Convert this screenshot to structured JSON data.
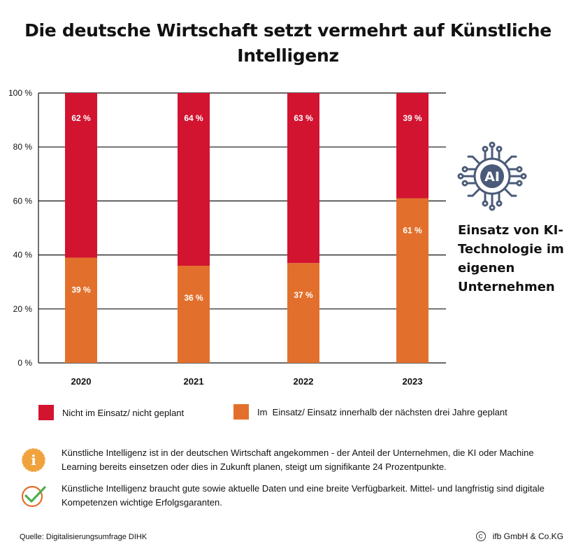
{
  "title": "Die deutsche Wirtschaft setzt vermehrt auf Künstliche Intelligenz",
  "side_label": "Einsatz von KI-Technologie im eigenen Unternehmen",
  "ai_icon_text": "AI",
  "colors": {
    "red": "#d21431",
    "orange": "#e2702c",
    "icon": "#4a5a78",
    "check": "#e2702c",
    "info": "#f0a23c"
  },
  "chart_data": {
    "type": "bar",
    "stacked": true,
    "categories": [
      "2020",
      "2021",
      "2022",
      "2023"
    ],
    "ylim": [
      0,
      100
    ],
    "yticks": [
      0,
      20,
      40,
      60,
      80,
      100
    ],
    "ytick_labels": [
      "0 %",
      "20 %",
      "40 %",
      "60 %",
      "80 %",
      "100 %"
    ],
    "series": [
      {
        "name": "Im  Einsatz/ Einsatz innerhalb der nächsten drei Jahre geplant",
        "values": [
          39,
          36,
          37,
          61
        ],
        "labels": [
          "39 %",
          "36 %",
          "37 %",
          "61 %"
        ]
      },
      {
        "name": "Nicht im Einsatz/ nicht geplant",
        "values": [
          62,
          64,
          63,
          39
        ],
        "labels": [
          "62 %",
          "64 %",
          "63 %",
          "39 %"
        ]
      }
    ]
  },
  "legend": {
    "not_used": "Nicht im Einsatz/ nicht geplant",
    "used": "Im  Einsatz/ Einsatz innerhalb der nächsten drei Jahre geplant"
  },
  "notes": {
    "info": "Künstliche Intelligenz ist in der deutschen Wirtschaft angekommen - der Anteil der Unternehmen, die KI oder Machine Learning bereits einsetzen oder dies in Zukunft planen, steigt um signifikante 24 Prozentpunkte.",
    "check": "Künstliche Intelligenz braucht gute sowie aktuelle Daten und eine breite Verfügbarkeit. Mittel- und langfristig sind digitale Kompetenzen wichtige Erfolgsgaranten.",
    "info_icon_glyph": "i"
  },
  "footer": {
    "source": "Quelle: Digitalisierungsumfrage DIHK",
    "copyright_symbol": "C",
    "copyright": "ifb GmbH & Co.KG"
  }
}
